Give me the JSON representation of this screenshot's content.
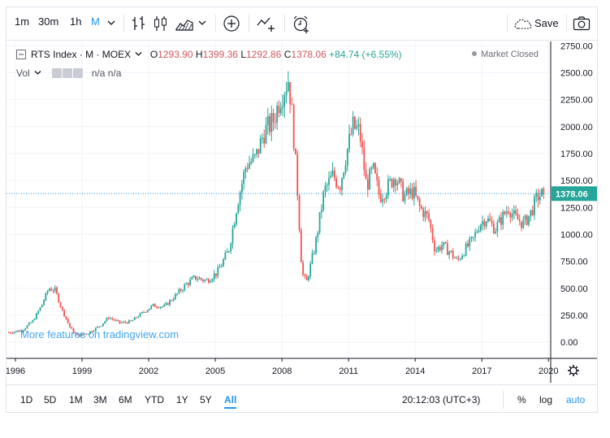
{
  "toolbar": {
    "intervals": [
      "1m",
      "30m",
      "1h",
      "M"
    ],
    "active_interval": "M",
    "save_label": "Save"
  },
  "legend": {
    "symbol": "RTS Index · M · MOEX",
    "open_label": "O",
    "open": "1293.90",
    "high_label": "H",
    "high": "1399.36",
    "low_label": "L",
    "low": "1292.86",
    "close_label": "C",
    "close": "1378.06",
    "change": "+84.74 (+6.55%)",
    "volume_label": "Vol",
    "volume_value": "n/a n/a",
    "market_status": "Market Closed"
  },
  "watermark": "More features on tradingview.com",
  "bottom": {
    "ranges": [
      "1D",
      "5D",
      "1M",
      "3M",
      "6M",
      "YTD",
      "1Y",
      "5Y",
      "All"
    ],
    "active_range": "All",
    "time": "20:12:03 (UTC+3)",
    "percent": "%",
    "log": "log",
    "auto": "auto"
  },
  "colors": {
    "up": "#26a69a",
    "down": "#ef5350",
    "price_line": "#2196f3",
    "accent": "#2196f3"
  },
  "chart_data": {
    "type": "candlestick",
    "title": "RTS Index · M · MOEX",
    "x_ticks": [
      "1996",
      "1999",
      "2002",
      "2005",
      "2008",
      "2011",
      "2014",
      "2017",
      "2020"
    ],
    "x_range": [
      1995.6,
      2020.1
    ],
    "y_ticks": [
      "0.00",
      "250.00",
      "500.00",
      "750.00",
      "1000.00",
      "1250.00",
      "1500.00",
      "1750.00",
      "2000.00",
      "2250.00",
      "2500.00",
      "2750.00"
    ],
    "y_range": [
      -150,
      2790
    ],
    "last_price": 1378.06,
    "last_price_label": "1378.06",
    "close_path": [
      [
        1995.7,
        90
      ],
      [
        1996.3,
        110
      ],
      [
        1996.8,
        200
      ],
      [
        1997.2,
        350
      ],
      [
        1997.5,
        500
      ],
      [
        1997.8,
        480
      ],
      [
        1998.1,
        300
      ],
      [
        1998.5,
        120
      ],
      [
        1998.8,
        60
      ],
      [
        1999.3,
        90
      ],
      [
        1999.8,
        150
      ],
      [
        2000.2,
        230
      ],
      [
        2000.7,
        180
      ],
      [
        2001.2,
        190
      ],
      [
        2001.7,
        270
      ],
      [
        2002.2,
        340
      ],
      [
        2002.7,
        330
      ],
      [
        2003.2,
        430
      ],
      [
        2003.7,
        540
      ],
      [
        2004.1,
        600
      ],
      [
        2004.6,
        570
      ],
      [
        2005.1,
        650
      ],
      [
        2005.6,
        850
      ],
      [
        2006.0,
        1300
      ],
      [
        2006.4,
        1650
      ],
      [
        2006.8,
        1700
      ],
      [
        2007.2,
        1950
      ],
      [
        2007.6,
        2050
      ],
      [
        2007.9,
        2250
      ],
      [
        2008.3,
        2450
      ],
      [
        2008.5,
        2000
      ],
      [
        2008.7,
        1400
      ],
      [
        2008.9,
        650
      ],
      [
        2009.1,
        550
      ],
      [
        2009.5,
        900
      ],
      [
        2009.9,
        1400
      ],
      [
        2010.3,
        1550
      ],
      [
        2010.6,
        1450
      ],
      [
        2010.9,
        1750
      ],
      [
        2011.2,
        2000
      ],
      [
        2011.5,
        1950
      ],
      [
        2011.8,
        1450
      ],
      [
        2012.1,
        1600
      ],
      [
        2012.4,
        1350
      ],
      [
        2012.8,
        1450
      ],
      [
        2013.1,
        1550
      ],
      [
        2013.5,
        1350
      ],
      [
        2013.9,
        1400
      ],
      [
        2014.2,
        1250
      ],
      [
        2014.6,
        1150
      ],
      [
        2014.9,
        850
      ],
      [
        2015.2,
        900
      ],
      [
        2015.6,
        830
      ],
      [
        2015.9,
        750
      ],
      [
        2016.2,
        850
      ],
      [
        2016.6,
        950
      ],
      [
        2016.9,
        1100
      ],
      [
        2017.2,
        1150
      ],
      [
        2017.6,
        1050
      ],
      [
        2017.9,
        1150
      ],
      [
        2018.2,
        1250
      ],
      [
        2018.5,
        1150
      ],
      [
        2018.9,
        1100
      ],
      [
        2019.2,
        1200
      ],
      [
        2019.5,
        1350
      ],
      [
        2019.75,
        1378
      ]
    ]
  }
}
